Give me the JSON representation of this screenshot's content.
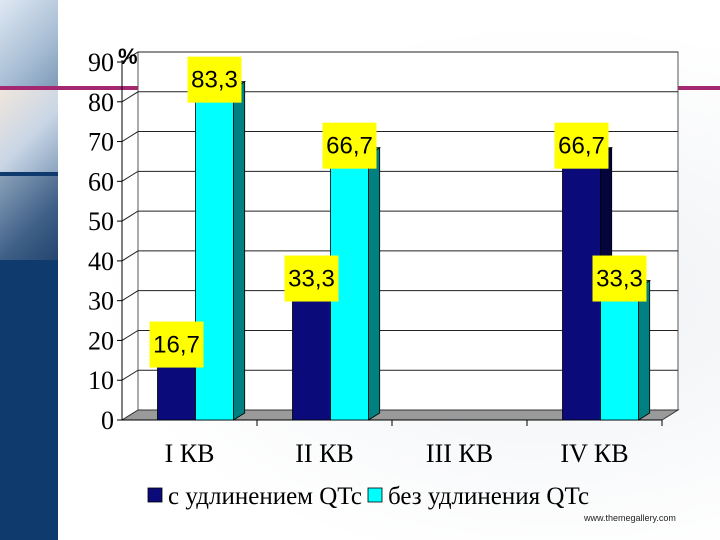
{
  "slide": {
    "footer": "www.themegallery.com",
    "accent_color": "#a3286f",
    "sidebar_color": "#0f3a6e"
  },
  "chart_data": {
    "type": "bar",
    "title": "",
    "xlabel": "",
    "ylabel": "%",
    "ylim": [
      0,
      90
    ],
    "yticks": [
      "0",
      "10",
      "20",
      "30",
      "40",
      "50",
      "60",
      "70",
      "80",
      "90"
    ],
    "grid": true,
    "legend_placement": "bottom",
    "categories": [
      "I КВ",
      "II КВ",
      "III КВ",
      "IV КВ"
    ],
    "series": [
      {
        "name": "с удлинением QTc",
        "color": "#0a0a7a",
        "values": [
          16.7,
          33.3,
          null,
          66.7
        ],
        "labels": [
          "16,7",
          "33,3",
          "",
          "66,7"
        ]
      },
      {
        "name": "без удлинения QTc",
        "color": "#00ffff",
        "values": [
          83.3,
          66.7,
          null,
          33.3
        ],
        "labels": [
          "83,3",
          "66,7",
          "",
          "33,3"
        ]
      }
    ],
    "label_color": "#ffff00"
  }
}
